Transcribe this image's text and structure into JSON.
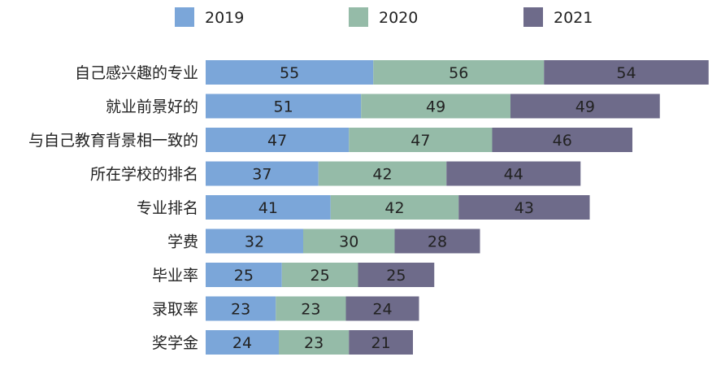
{
  "chart_data": {
    "type": "bar",
    "orientation": "horizontal",
    "stacked": true,
    "categories": [
      "自己感兴趣的专业",
      "就业前景好的",
      "与自己教育背景相一致的",
      "所在学校的排名",
      "专业排名",
      "学费",
      "毕业率",
      "录取率",
      "奖学金"
    ],
    "series": [
      {
        "name": "2019",
        "color": "#7ba6d9",
        "values": [
          55,
          51,
          47,
          37,
          41,
          32,
          25,
          23,
          24
        ]
      },
      {
        "name": "2020",
        "color": "#95bba8",
        "values": [
          56,
          49,
          47,
          42,
          42,
          30,
          25,
          23,
          23
        ]
      },
      {
        "name": "2021",
        "color": "#6e6b8a",
        "values": [
          54,
          49,
          46,
          44,
          43,
          28,
          25,
          24,
          21
        ]
      }
    ],
    "title": "",
    "xlabel": "",
    "ylabel": "",
    "grid": false,
    "legend_position": "top"
  }
}
